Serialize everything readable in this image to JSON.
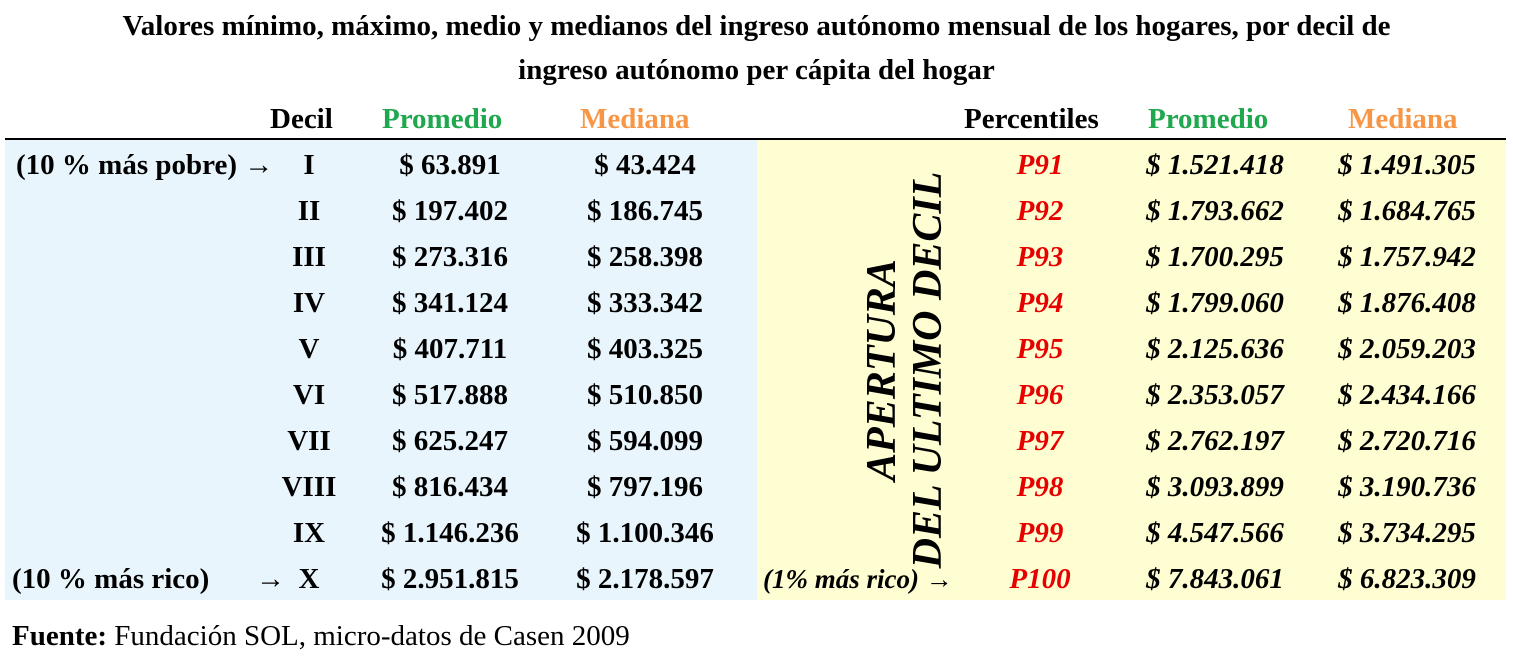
{
  "title": {
    "line1": "Valores mínimo, máximo, medio y medianos del ingreso autónomo mensual de los hogares, por decil de",
    "line2": "ingreso autónomo per cápita del hogar"
  },
  "headers": {
    "decil": "Decil",
    "promedio_left": "Promedio",
    "mediana_left": "Mediana",
    "percentiles": "Percentiles",
    "promedio_right": "Promedio",
    "mediana_right": "Mediana"
  },
  "vertical_label": {
    "line1": "APERTURA",
    "line2": "DEL ULTIMO DECIL"
  },
  "deciles": [
    {
      "note": "(10 % más pobre) →",
      "decil": "I",
      "promedio": "$ 63.891",
      "mediana": "$ 43.424"
    },
    {
      "note": "",
      "decil": "II",
      "promedio": "$ 197.402",
      "mediana": "$ 186.745"
    },
    {
      "note": "",
      "decil": "III",
      "promedio": "$ 273.316",
      "mediana": "$ 258.398"
    },
    {
      "note": "",
      "decil": "IV",
      "promedio": "$ 341.124",
      "mediana": "$ 333.342"
    },
    {
      "note": "",
      "decil": "V",
      "promedio": "$ 407.711",
      "mediana": "$ 403.325"
    },
    {
      "note": "",
      "decil": "VI",
      "promedio": "$ 517.888",
      "mediana": "$ 510.850"
    },
    {
      "note": "",
      "decil": "VII",
      "promedio": "$ 625.247",
      "mediana": "$ 594.099"
    },
    {
      "note": "",
      "decil": "VIII",
      "promedio": "$ 816.434",
      "mediana": "$ 797.196"
    },
    {
      "note": "",
      "decil": "IX",
      "promedio": "$ 1.146.236",
      "mediana": "$ 1.100.346"
    },
    {
      "note": "(10 % más rico)",
      "arrow": "→",
      "decil": "X",
      "promedio": "$ 2.951.815",
      "mediana": "$ 2.178.597"
    }
  ],
  "percentiles": [
    {
      "note": "",
      "p": "P91",
      "promedio": "$ 1.521.418",
      "mediana": "$ 1.491.305"
    },
    {
      "note": "",
      "p": "P92",
      "promedio": "$ 1.793.662",
      "mediana": "$ 1.684.765"
    },
    {
      "note": "",
      "p": "P93",
      "promedio": "$ 1.700.295",
      "mediana": "$ 1.757.942"
    },
    {
      "note": "",
      "p": "P94",
      "promedio": "$ 1.799.060",
      "mediana": "$ 1.876.408"
    },
    {
      "note": "",
      "p": "P95",
      "promedio": "$ 2.125.636",
      "mediana": "$ 2.059.203"
    },
    {
      "note": "",
      "p": "P96",
      "promedio": "$ 2.353.057",
      "mediana": "$ 2.434.166"
    },
    {
      "note": "",
      "p": "P97",
      "promedio": "$ 2.762.197",
      "mediana": "$ 2.720.716"
    },
    {
      "note": "",
      "p": "P98",
      "promedio": "$ 3.093.899",
      "mediana": "$ 3.190.736"
    },
    {
      "note": "",
      "p": "P99",
      "promedio": "$ 4.547.566",
      "mediana": "$ 3.734.295"
    },
    {
      "note": "(1% más rico) →",
      "p": "P100",
      "promedio": "$ 7.843.061",
      "mediana": "$ 6.823.309"
    }
  ],
  "source": {
    "label": "Fuente:",
    "text": " Fundación SOL, micro-datos de Casen 2009"
  },
  "colors": {
    "green": "#1fa84e",
    "orange": "#f79646",
    "red": "#e60000",
    "left_bg": "#e9f5fc",
    "right_bg": "#fffed2"
  }
}
